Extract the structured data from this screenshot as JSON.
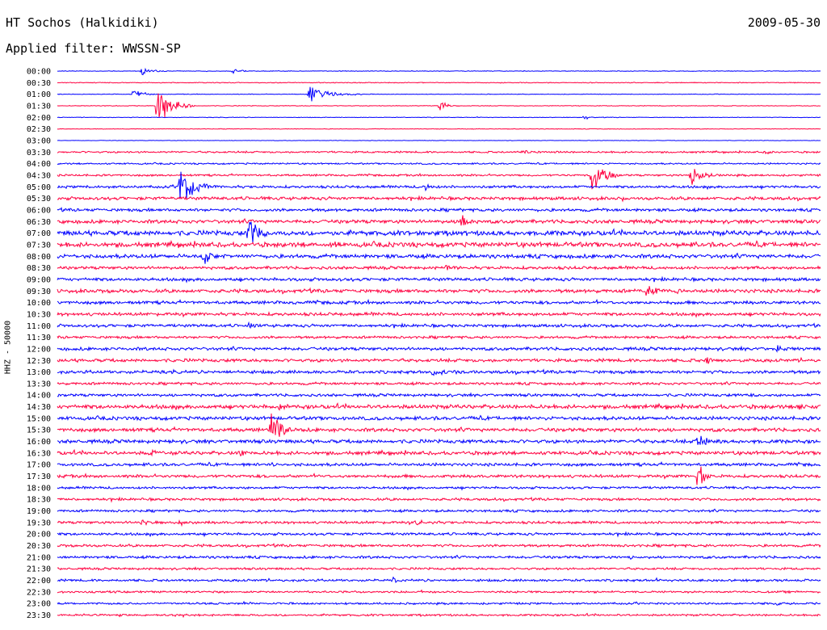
{
  "header": {
    "station": "HT Sochos (Halkidiki)",
    "date": "2009-05-30",
    "filter_label": "Applied filter:",
    "filter_name": "WWSSN-SP"
  },
  "chart_data": {
    "type": "line",
    "title": "HT Sochos (Halkidiki)",
    "ylabel": "HHZ - 50000",
    "xlabel": "",
    "line_colors": [
      "#0000ff",
      "#ff0040"
    ],
    "row_labels": [
      "00:00",
      "00:30",
      "01:00",
      "01:30",
      "02:00",
      "02:30",
      "03:00",
      "03:30",
      "04:00",
      "04:30",
      "05:00",
      "05:30",
      "06:00",
      "06:30",
      "07:00",
      "07:30",
      "08:00",
      "08:30",
      "09:00",
      "09:30",
      "10:00",
      "10:30",
      "11:00",
      "11:30",
      "12:00",
      "12:30",
      "13:00",
      "13:30",
      "14:00",
      "14:30",
      "15:00",
      "15:30",
      "16:00",
      "16:30",
      "17:00",
      "17:30",
      "18:00",
      "18:30",
      "19:00",
      "19:30",
      "20:00",
      "20:30",
      "21:00",
      "21:30",
      "22:00",
      "22:30",
      "23:00",
      "23:30"
    ],
    "row_noise": [
      0.3,
      0.4,
      0.3,
      0.3,
      0.3,
      0.3,
      0.2,
      0.9,
      0.8,
      1.0,
      1.3,
      1.6,
      1.5,
      1.8,
      2.4,
      2.4,
      2.0,
      1.5,
      1.6,
      1.8,
      1.6,
      1.6,
      1.5,
      1.3,
      1.6,
      1.6,
      1.6,
      1.3,
      1.4,
      2.0,
      1.8,
      1.8,
      1.8,
      1.8,
      1.5,
      1.5,
      1.2,
      1.3,
      1.2,
      1.3,
      1.3,
      1.3,
      1.3,
      1.1,
      1.2,
      1.0,
      1.0,
      1.0
    ],
    "events": [
      {
        "row": 0,
        "t": 0.11,
        "amp": 6,
        "dur": 0.04
      },
      {
        "row": 0,
        "t": 0.23,
        "amp": 4,
        "dur": 0.03
      },
      {
        "row": 2,
        "t": 0.1,
        "amp": 9,
        "dur": 0.03
      },
      {
        "row": 2,
        "t": 0.33,
        "amp": 13,
        "dur": 0.07
      },
      {
        "row": 3,
        "t": 0.13,
        "amp": 30,
        "dur": 0.05
      },
      {
        "row": 3,
        "t": 0.5,
        "amp": 8,
        "dur": 0.03
      },
      {
        "row": 4,
        "t": 0.69,
        "amp": 4,
        "dur": 0.02
      },
      {
        "row": 7,
        "t": 0.61,
        "amp": 4,
        "dur": 0.05
      },
      {
        "row": 7,
        "t": 0.93,
        "amp": 5,
        "dur": 0.02
      },
      {
        "row": 9,
        "t": 0.7,
        "amp": 28,
        "dur": 0.04
      },
      {
        "row": 9,
        "t": 0.83,
        "amp": 22,
        "dur": 0.04
      },
      {
        "row": 10,
        "t": 0.16,
        "amp": 30,
        "dur": 0.05
      },
      {
        "row": 10,
        "t": 0.48,
        "amp": 8,
        "dur": 0.02
      },
      {
        "row": 11,
        "t": 0.74,
        "amp": 6,
        "dur": 0.02
      },
      {
        "row": 13,
        "t": 0.53,
        "amp": 12,
        "dur": 0.02
      },
      {
        "row": 14,
        "t": 0.25,
        "amp": 30,
        "dur": 0.04
      },
      {
        "row": 15,
        "t": 0.36,
        "amp": 8,
        "dur": 0.02
      },
      {
        "row": 16,
        "t": 0.19,
        "amp": 14,
        "dur": 0.04
      },
      {
        "row": 17,
        "t": 0.51,
        "amp": 7,
        "dur": 0.02
      },
      {
        "row": 19,
        "t": 0.77,
        "amp": 10,
        "dur": 0.06
      },
      {
        "row": 22,
        "t": 0.25,
        "amp": 8,
        "dur": 0.02
      },
      {
        "row": 24,
        "t": 0.94,
        "amp": 7,
        "dur": 0.03
      },
      {
        "row": 25,
        "t": 0.85,
        "amp": 9,
        "dur": 0.02
      },
      {
        "row": 26,
        "t": 0.49,
        "amp": 6,
        "dur": 0.07
      },
      {
        "row": 28,
        "t": 0.91,
        "amp": 6,
        "dur": 0.02
      },
      {
        "row": 29,
        "t": 0.29,
        "amp": 9,
        "dur": 0.02
      },
      {
        "row": 29,
        "t": 0.97,
        "amp": 8,
        "dur": 0.02
      },
      {
        "row": 31,
        "t": 0.28,
        "amp": 26,
        "dur": 0.04
      },
      {
        "row": 32,
        "t": 0.84,
        "amp": 14,
        "dur": 0.03
      },
      {
        "row": 33,
        "t": 0.12,
        "amp": 8,
        "dur": 0.03
      },
      {
        "row": 33,
        "t": 0.24,
        "amp": 8,
        "dur": 0.02
      },
      {
        "row": 34,
        "t": 0.28,
        "amp": 5,
        "dur": 0.02
      },
      {
        "row": 35,
        "t": 0.84,
        "amp": 24,
        "dur": 0.02
      },
      {
        "row": 39,
        "t": 0.11,
        "amp": 7,
        "dur": 0.02
      },
      {
        "row": 39,
        "t": 0.16,
        "amp": 6,
        "dur": 0.02
      },
      {
        "row": 39,
        "t": 0.47,
        "amp": 6,
        "dur": 0.03
      },
      {
        "row": 42,
        "t": 0.75,
        "amp": 5,
        "dur": 0.02
      },
      {
        "row": 44,
        "t": 0.44,
        "amp": 5,
        "dur": 0.02
      },
      {
        "row": 46,
        "t": 0.94,
        "amp": 5,
        "dur": 0.02
      }
    ]
  }
}
